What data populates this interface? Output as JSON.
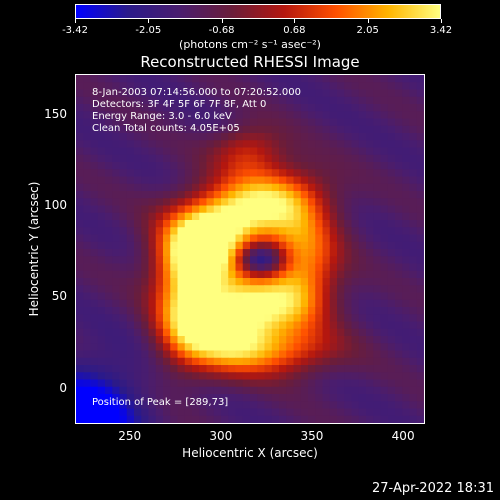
{
  "colorbar": {
    "ticks": [
      "-3.42",
      "-2.05",
      "-0.68",
      "0.68",
      "2.05",
      "3.42"
    ],
    "tick_values": [
      -3.42,
      -2.05,
      -0.68,
      0.68,
      2.05,
      3.42
    ],
    "unit_label": "(photons cm⁻² s⁻¹ asec⁻²)",
    "colors": [
      "#0000ff",
      "#2a1a8a",
      "#4a1d6e",
      "#6a1d3a",
      "#b4170f",
      "#ff5000",
      "#ffb400",
      "#ffff80"
    ]
  },
  "chart_data": {
    "type": "heatmap",
    "title": "Reconstructed RHESSI Image",
    "xlabel": "Heliocentric X (arcsec)",
    "ylabel": "Heliocentric Y (arcsec)",
    "xlim": [
      220,
      412
    ],
    "ylim": [
      -20,
      172
    ],
    "xticks": [
      250,
      300,
      350,
      400
    ],
    "yticks": [
      0,
      50,
      100,
      150
    ],
    "peak": [
      289,
      73
    ],
    "annotations": [
      "8-Jan-2003 07:14:56.000 to 07:20:52.000",
      "Detectors: 3F 4F 5F 6F 7F 8F, Att 0",
      "Energy Range: 3.0 - 6.0 keV",
      "Clean     Total counts: 4.05E+05"
    ],
    "peak_label": "Position of Peak = [289,73]"
  },
  "footer": {
    "timestamp": "27-Apr-2022 18:31"
  }
}
